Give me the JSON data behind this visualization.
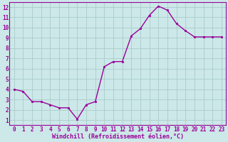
{
  "x": [
    0,
    1,
    2,
    3,
    4,
    5,
    6,
    7,
    8,
    9,
    10,
    11,
    12,
    13,
    14,
    15,
    16,
    17,
    18,
    19,
    20,
    21,
    22,
    23
  ],
  "y": [
    4.0,
    3.8,
    2.8,
    2.8,
    2.5,
    2.2,
    2.2,
    1.1,
    2.5,
    2.8,
    6.2,
    6.7,
    6.7,
    9.2,
    9.9,
    11.2,
    12.1,
    11.7,
    10.4,
    9.7,
    9.1,
    9.1,
    9.1,
    9.1
  ],
  "line_color": "#990099",
  "marker": "o",
  "marker_size": 1.8,
  "line_width": 1.0,
  "bg_color": "#cce8e8",
  "grid_color": "#aacccc",
  "xlabel": "Windchill (Refroidissement éolien,°C)",
  "xlabel_color": "#990099",
  "xlabel_fontsize": 6.0,
  "tick_color": "#990099",
  "tick_fontsize": 5.5,
  "xlim": [
    -0.5,
    23.5
  ],
  "ylim": [
    0.5,
    12.5
  ],
  "yticks": [
    1,
    2,
    3,
    4,
    5,
    6,
    7,
    8,
    9,
    10,
    11,
    12
  ],
  "xticks": [
    0,
    1,
    2,
    3,
    4,
    5,
    6,
    7,
    8,
    9,
    10,
    11,
    12,
    13,
    14,
    15,
    16,
    17,
    18,
    19,
    20,
    21,
    22,
    23
  ],
  "spine_color": "#990099",
  "axis_line_color": "#990099"
}
